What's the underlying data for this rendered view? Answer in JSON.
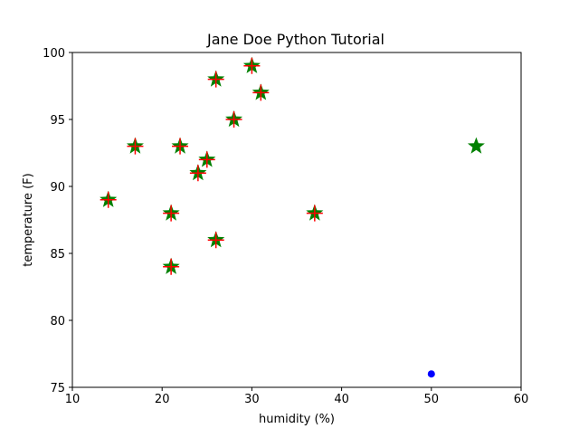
{
  "chart_data": {
    "type": "scatter",
    "title": "Jane Doe Python Tutorial",
    "xlabel": "humidity (%)",
    "ylabel": "temperature (F)",
    "xlim": [
      10,
      60
    ],
    "ylim": [
      75,
      100
    ],
    "xticks": [
      10,
      20,
      30,
      40,
      50,
      60
    ],
    "yticks": [
      75,
      80,
      85,
      90,
      95,
      100
    ],
    "grid": false,
    "series": [
      {
        "marker": "star-with-plus",
        "color": "#008000",
        "accent_color": "#ff0000",
        "points": [
          {
            "x": 14,
            "y": 89
          },
          {
            "x": 17,
            "y": 93
          },
          {
            "x": 21,
            "y": 88
          },
          {
            "x": 21,
            "y": 84
          },
          {
            "x": 22,
            "y": 93
          },
          {
            "x": 24,
            "y": 91
          },
          {
            "x": 25,
            "y": 92
          },
          {
            "x": 26,
            "y": 98
          },
          {
            "x": 26,
            "y": 86
          },
          {
            "x": 28,
            "y": 95
          },
          {
            "x": 30,
            "y": 99
          },
          {
            "x": 31,
            "y": 97
          },
          {
            "x": 37,
            "y": 88
          }
        ]
      },
      {
        "marker": "star",
        "color": "#008000",
        "points": [
          {
            "x": 55,
            "y": 93
          }
        ]
      },
      {
        "marker": "circle",
        "color": "#0000ff",
        "points": [
          {
            "x": 50,
            "y": 76
          }
        ]
      }
    ]
  }
}
